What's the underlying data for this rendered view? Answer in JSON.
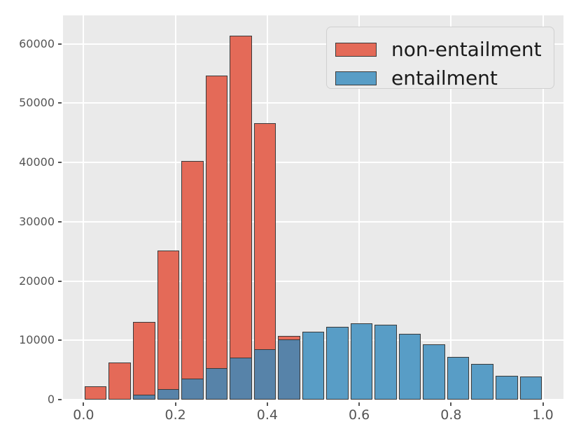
{
  "chart_data": {
    "type": "bar",
    "subtype": "overlaid-histogram",
    "title": "",
    "xlabel": "",
    "ylabel": "",
    "bins": {
      "count": 19,
      "range": [
        0,
        1
      ],
      "bin_width": 0.0526
    },
    "series": [
      {
        "name": "non-entailment",
        "base_color": "#E24A33",
        "fill_color": "#E46A58",
        "values": [
          2300,
          6200,
          13100,
          25100,
          40300,
          54700,
          61400,
          46600,
          10800,
          0,
          0,
          0,
          0,
          0,
          0,
          0,
          0,
          0,
          0
        ]
      },
      {
        "name": "entailment",
        "base_color": "#348ABD",
        "fill_color": "#589DC6",
        "values": [
          0,
          0,
          800,
          1800,
          3500,
          5300,
          7100,
          8500,
          10100,
          11500,
          12300,
          12900,
          12600,
          11100,
          9300,
          7200,
          6000,
          4000,
          3900
        ]
      }
    ],
    "overlap_fill_color": "#5783A9",
    "bar_edge_color": "#3A3A3A",
    "x_ticks": [
      {
        "label": "0.0",
        "value": 0.0
      },
      {
        "label": "0.2",
        "value": 0.2
      },
      {
        "label": "0.4",
        "value": 0.4
      },
      {
        "label": "0.6",
        "value": 0.6
      },
      {
        "label": "0.8",
        "value": 0.8
      },
      {
        "label": "1.0",
        "value": 1.0
      }
    ],
    "y_ticks": [
      {
        "label": "0",
        "value": 0
      },
      {
        "label": "10000",
        "value": 10000
      },
      {
        "label": "20000",
        "value": 20000
      },
      {
        "label": "30000",
        "value": 30000
      },
      {
        "label": "40000",
        "value": 40000
      },
      {
        "label": "50000",
        "value": 50000
      },
      {
        "label": "60000",
        "value": 60000
      }
    ],
    "xlim": [
      -0.045,
      1.045
    ],
    "ylim": [
      0,
      64800
    ],
    "grid": true,
    "grid_color": "#FFFFFF",
    "plot_bg_color": "#EAEAEA",
    "tick_color": "#555555",
    "legend_position": "upper right"
  }
}
